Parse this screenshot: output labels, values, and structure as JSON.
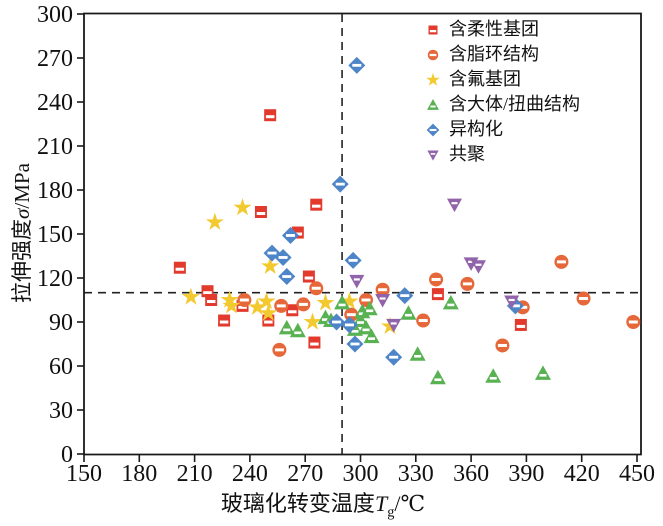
{
  "chart_data": {
    "type": "scatter",
    "xlabel_main": "玻璃化转变温度",
    "xlabel_var": "T",
    "xlabel_sub": "g",
    "xlabel_unit": "/℃",
    "ylabel_main": "拉伸强度",
    "ylabel_var": "σ",
    "ylabel_unit": "/MPa",
    "xlim": [
      150,
      450
    ],
    "ylim": [
      0,
      300
    ],
    "xticks": [
      150,
      180,
      210,
      240,
      270,
      300,
      330,
      360,
      390,
      420,
      450
    ],
    "yticks": [
      0,
      30,
      60,
      90,
      120,
      150,
      180,
      210,
      240,
      270,
      300
    ],
    "grid": false,
    "legend_position": "top-right",
    "reference_lines": {
      "x": 290,
      "y": 110,
      "style": "dashed",
      "color": "#222222"
    },
    "series": [
      {
        "name": "含柔性基团",
        "marker": "square",
        "color": "#e23a2d",
        "points": [
          [
            251,
            231
          ],
          [
            246,
            165
          ],
          [
            276,
            170
          ],
          [
            266,
            151
          ],
          [
            202,
            127
          ],
          [
            217,
            111
          ],
          [
            219,
            105
          ],
          [
            226,
            91
          ],
          [
            236,
            101
          ],
          [
            250,
            91
          ],
          [
            263,
            98
          ],
          [
            272,
            121
          ],
          [
            275,
            76
          ],
          [
            342,
            109
          ],
          [
            387,
            88
          ]
        ]
      },
      {
        "name": "含脂环结构",
        "marker": "circle",
        "color": "#e5673a",
        "points": [
          [
            237,
            105
          ],
          [
            257,
            101
          ],
          [
            269,
            102
          ],
          [
            276,
            113
          ],
          [
            256,
            71
          ],
          [
            295,
            95
          ],
          [
            303,
            105
          ],
          [
            312,
            112
          ],
          [
            334,
            91
          ],
          [
            341,
            119
          ],
          [
            358,
            116
          ],
          [
            377,
            74
          ],
          [
            388,
            100
          ],
          [
            409,
            131
          ],
          [
            421,
            106
          ],
          [
            448,
            90
          ]
        ]
      },
      {
        "name": "含氟基团",
        "marker": "star",
        "color": "#f3c930",
        "points": [
          [
            221,
            158
          ],
          [
            236,
            168
          ],
          [
            208,
            107
          ],
          [
            229,
            105
          ],
          [
            230,
            101
          ],
          [
            244,
            100
          ],
          [
            249,
            104
          ],
          [
            250,
            96
          ],
          [
            251,
            128
          ],
          [
            274,
            90
          ],
          [
            281,
            103
          ],
          [
            294,
            104
          ],
          [
            316,
            87
          ]
        ]
      },
      {
        "name": "含大体/扭曲结构",
        "marker": "triangle-up",
        "color": "#58b252",
        "points": [
          [
            260,
            86
          ],
          [
            266,
            84
          ],
          [
            281,
            93
          ],
          [
            284,
            91
          ],
          [
            290,
            103
          ],
          [
            297,
            85
          ],
          [
            300,
            91
          ],
          [
            301,
            97
          ],
          [
            303,
            86
          ],
          [
            306,
            80
          ],
          [
            305,
            99
          ],
          [
            326,
            96
          ],
          [
            349,
            103
          ],
          [
            331,
            68
          ],
          [
            342,
            52
          ],
          [
            372,
            53
          ],
          [
            399,
            55
          ]
        ]
      },
      {
        "name": "异构化",
        "marker": "diamond",
        "color": "#4e85c8",
        "points": [
          [
            298,
            265
          ],
          [
            289,
            184
          ],
          [
            296,
            132
          ],
          [
            252,
            137
          ],
          [
            258,
            134
          ],
          [
            260,
            121
          ],
          [
            262,
            149
          ],
          [
            324,
            108
          ],
          [
            287,
            90
          ],
          [
            294,
            88
          ],
          [
            297,
            75
          ],
          [
            318,
            66
          ],
          [
            384,
            101
          ]
        ]
      },
      {
        "name": "共聚",
        "marker": "triangle-down",
        "color": "#9163aa",
        "points": [
          [
            351,
            170
          ],
          [
            298,
            118
          ],
          [
            312,
            105
          ],
          [
            318,
            88
          ],
          [
            360,
            130
          ],
          [
            364,
            128
          ],
          [
            382,
            104
          ]
        ]
      }
    ]
  }
}
